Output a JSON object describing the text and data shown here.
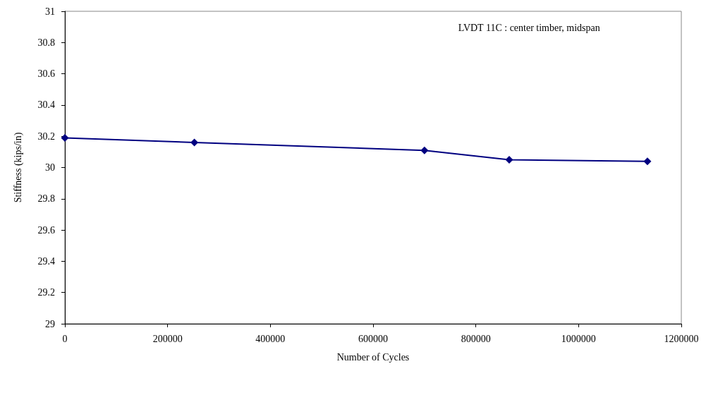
{
  "chart_data": {
    "type": "line",
    "xlabel": "Number of Cycles",
    "ylabel": "Stiffness (kips/in)",
    "annotations": [
      "LVDT 11C : center timber, midspan"
    ],
    "series": [
      {
        "color": "#000080",
        "x": [
          0,
          252000,
          700000,
          865000,
          1134000
        ],
        "values": [
          30.19,
          30.16,
          30.11,
          30.05,
          30.04
        ]
      }
    ],
    "xlim": [
      0,
      1200000
    ],
    "xticks": [
      0,
      200000,
      400000,
      600000,
      800000,
      1000000,
      1200000
    ],
    "ylim": [
      29,
      31
    ],
    "yticks": [
      29,
      29.2,
      29.4,
      29.6,
      29.8,
      30,
      30.2,
      30.4,
      30.6,
      30.8,
      31
    ],
    "marker": "diamond",
    "line_style": "solid"
  }
}
